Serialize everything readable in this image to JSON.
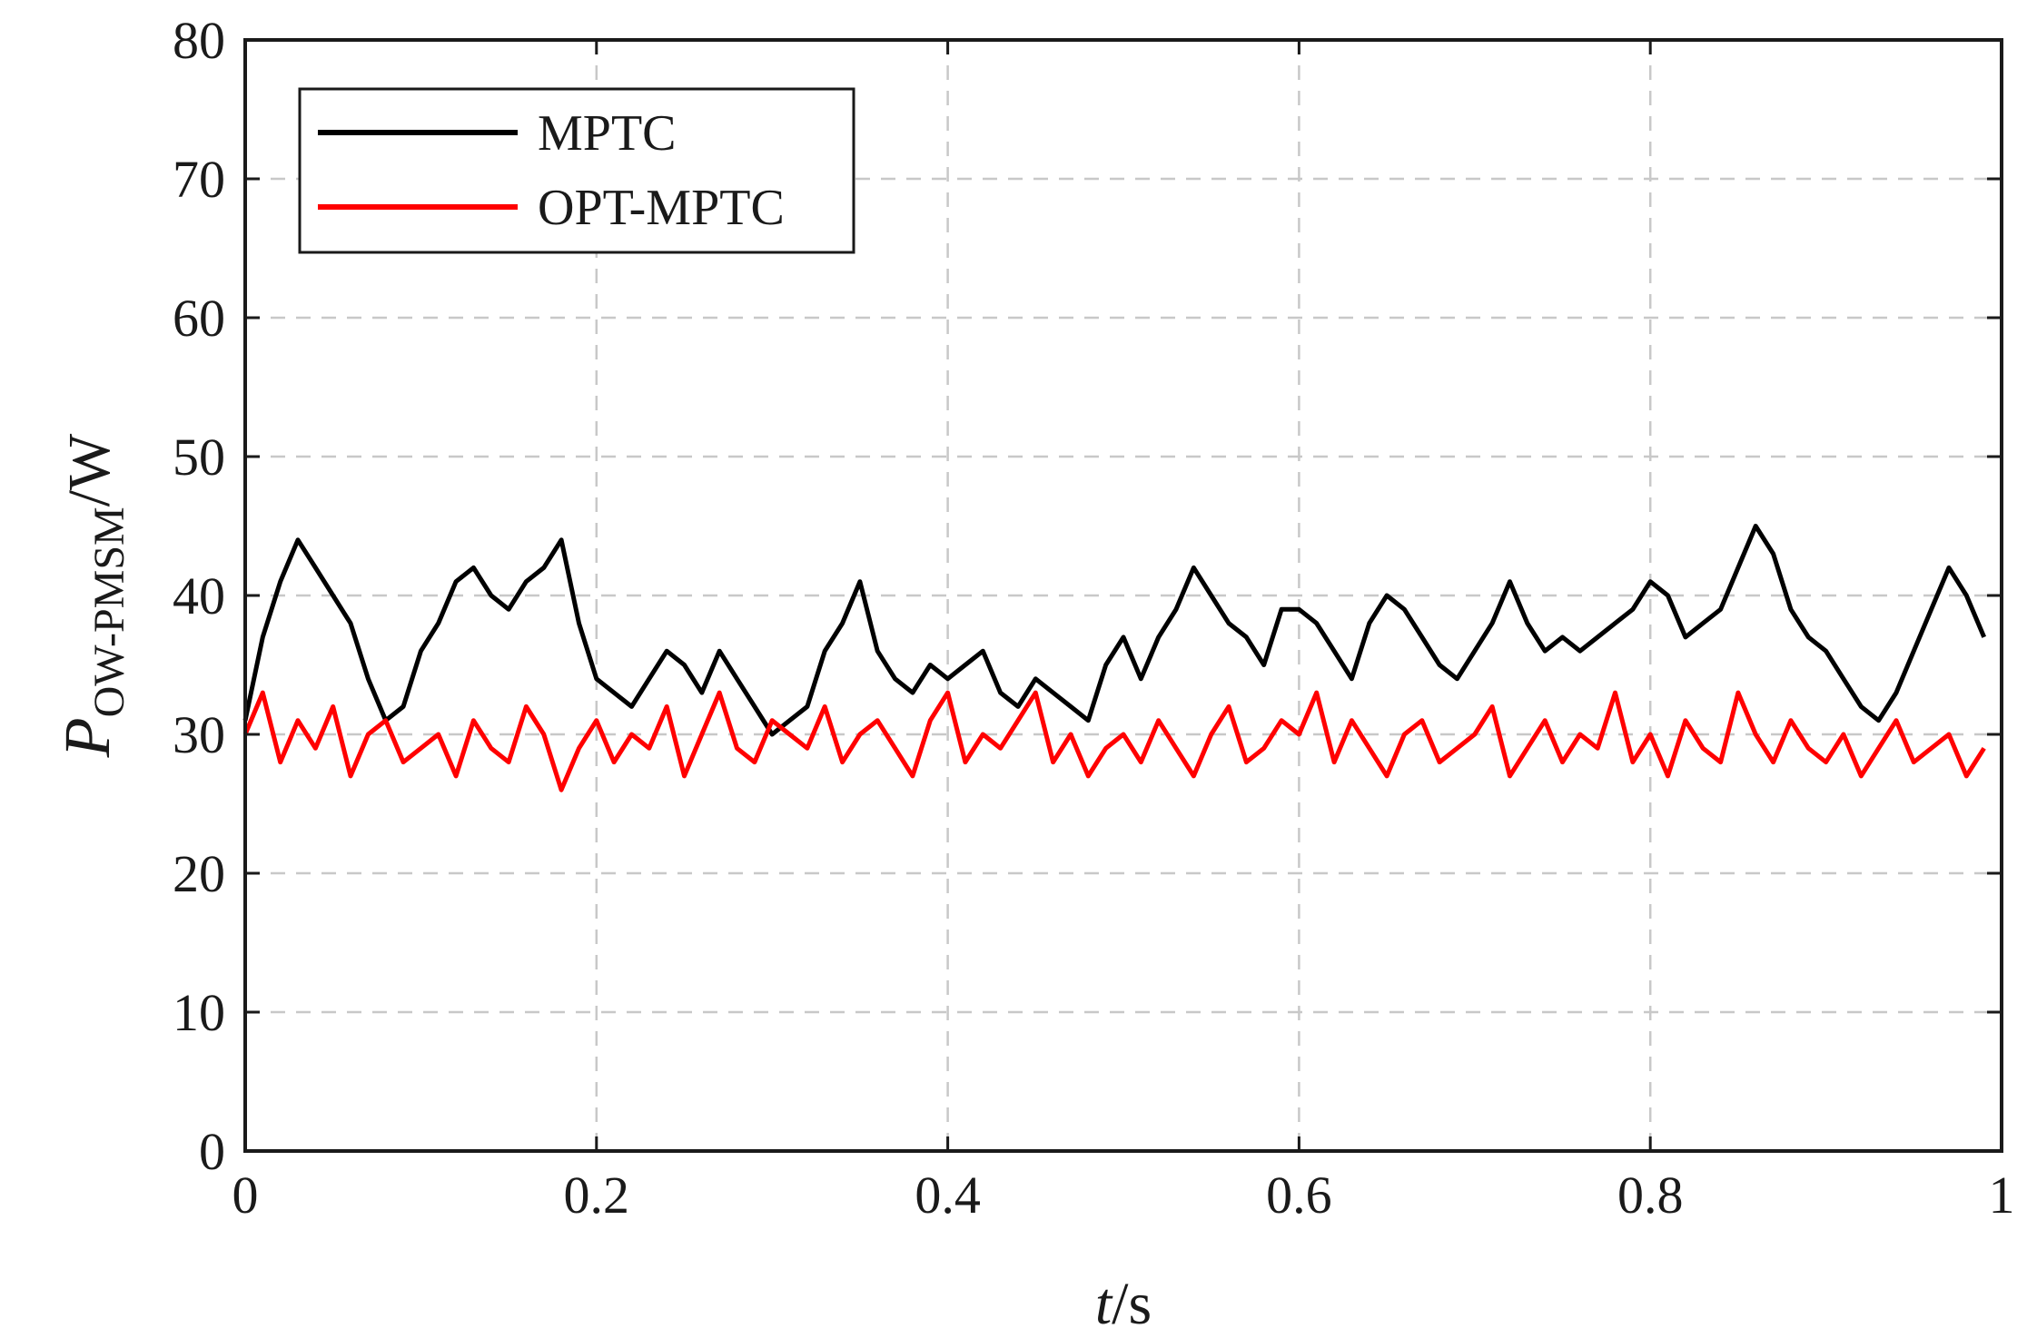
{
  "chart_data": {
    "type": "line",
    "xlabel": {
      "italic": "t",
      "rest": "/s"
    },
    "ylabel": {
      "main": "P",
      "subscript": "OW-PMSM",
      "suffix": "/W"
    },
    "xlim": [
      0,
      1
    ],
    "ylim": [
      0,
      80
    ],
    "xticks": [
      0,
      0.2,
      0.4,
      0.6,
      0.8,
      1
    ],
    "xtick_labels": [
      "0",
      "0.2",
      "0.4",
      "0.6",
      "0.8",
      "1"
    ],
    "yticks": [
      0,
      10,
      20,
      30,
      40,
      50,
      60,
      70,
      80
    ],
    "ytick_labels": [
      "0",
      "10",
      "20",
      "30",
      "40",
      "50",
      "60",
      "70",
      "80"
    ],
    "grid": true,
    "legend_position": "top-left",
    "series": [
      {
        "name": "MPTC",
        "color": "#000000",
        "x": [
          0.0,
          0.01,
          0.02,
          0.03,
          0.04,
          0.05,
          0.06,
          0.07,
          0.08,
          0.09,
          0.1,
          0.11,
          0.12,
          0.13,
          0.14,
          0.15,
          0.16,
          0.17,
          0.18,
          0.19,
          0.2,
          0.21,
          0.22,
          0.23,
          0.24,
          0.25,
          0.26,
          0.27,
          0.28,
          0.29,
          0.3,
          0.31,
          0.32,
          0.33,
          0.34,
          0.35,
          0.36,
          0.37,
          0.38,
          0.39,
          0.4,
          0.41,
          0.42,
          0.43,
          0.44,
          0.45,
          0.46,
          0.47,
          0.48,
          0.49,
          0.5,
          0.51,
          0.52,
          0.53,
          0.54,
          0.55,
          0.56,
          0.57,
          0.58,
          0.59,
          0.6,
          0.61,
          0.62,
          0.63,
          0.64,
          0.65,
          0.66,
          0.67,
          0.68,
          0.69,
          0.7,
          0.71,
          0.72,
          0.73,
          0.74,
          0.75,
          0.76,
          0.77,
          0.78,
          0.79,
          0.8,
          0.81,
          0.82,
          0.83,
          0.84,
          0.85,
          0.86,
          0.87,
          0.88,
          0.89,
          0.9,
          0.91,
          0.92,
          0.93,
          0.94,
          0.95,
          0.96,
          0.97,
          0.98,
          0.99
        ],
        "y": [
          31,
          37,
          41,
          44,
          42,
          40,
          38,
          34,
          31,
          32,
          36,
          38,
          41,
          42,
          40,
          39,
          41,
          42,
          44,
          38,
          34,
          33,
          32,
          34,
          36,
          35,
          33,
          36,
          34,
          32,
          30,
          31,
          32,
          36,
          38,
          41,
          36,
          34,
          33,
          35,
          34,
          35,
          36,
          33,
          32,
          34,
          33,
          32,
          31,
          35,
          37,
          34,
          37,
          39,
          42,
          40,
          38,
          37,
          35,
          39,
          39,
          38,
          36,
          34,
          38,
          40,
          39,
          37,
          35,
          34,
          36,
          38,
          41,
          38,
          36,
          37,
          36,
          37,
          38,
          39,
          41,
          40,
          37,
          38,
          39,
          42,
          45,
          43,
          39,
          37,
          36,
          34,
          32,
          31,
          33,
          36,
          39,
          42,
          40,
          37
        ]
      },
      {
        "name": "OPT-MPTC",
        "color": "#ff0000",
        "x": [
          0.0,
          0.01,
          0.02,
          0.03,
          0.04,
          0.05,
          0.06,
          0.07,
          0.08,
          0.09,
          0.1,
          0.11,
          0.12,
          0.13,
          0.14,
          0.15,
          0.16,
          0.17,
          0.18,
          0.19,
          0.2,
          0.21,
          0.22,
          0.23,
          0.24,
          0.25,
          0.26,
          0.27,
          0.28,
          0.29,
          0.3,
          0.31,
          0.32,
          0.33,
          0.34,
          0.35,
          0.36,
          0.37,
          0.38,
          0.39,
          0.4,
          0.41,
          0.42,
          0.43,
          0.44,
          0.45,
          0.46,
          0.47,
          0.48,
          0.49,
          0.5,
          0.51,
          0.52,
          0.53,
          0.54,
          0.55,
          0.56,
          0.57,
          0.58,
          0.59,
          0.6,
          0.61,
          0.62,
          0.63,
          0.64,
          0.65,
          0.66,
          0.67,
          0.68,
          0.69,
          0.7,
          0.71,
          0.72,
          0.73,
          0.74,
          0.75,
          0.76,
          0.77,
          0.78,
          0.79,
          0.8,
          0.81,
          0.82,
          0.83,
          0.84,
          0.85,
          0.86,
          0.87,
          0.88,
          0.89,
          0.9,
          0.91,
          0.92,
          0.93,
          0.94,
          0.95,
          0.96,
          0.97,
          0.98,
          0.99
        ],
        "y": [
          30,
          33,
          28,
          31,
          29,
          32,
          27,
          30,
          31,
          28,
          29,
          30,
          27,
          31,
          29,
          28,
          32,
          30,
          26,
          29,
          31,
          28,
          30,
          29,
          32,
          27,
          30,
          33,
          29,
          28,
          31,
          30,
          29,
          32,
          28,
          30,
          31,
          29,
          27,
          31,
          33,
          28,
          30,
          29,
          31,
          33,
          28,
          30,
          27,
          29,
          30,
          28,
          31,
          29,
          27,
          30,
          32,
          28,
          29,
          31,
          30,
          33,
          28,
          31,
          29,
          27,
          30,
          31,
          28,
          29,
          30,
          32,
          27,
          29,
          31,
          28,
          30,
          29,
          33,
          28,
          30,
          27,
          31,
          29,
          28,
          33,
          30,
          28,
          31,
          29,
          28,
          30,
          27,
          29,
          31,
          28,
          29,
          30,
          27,
          29
        ]
      }
    ]
  }
}
